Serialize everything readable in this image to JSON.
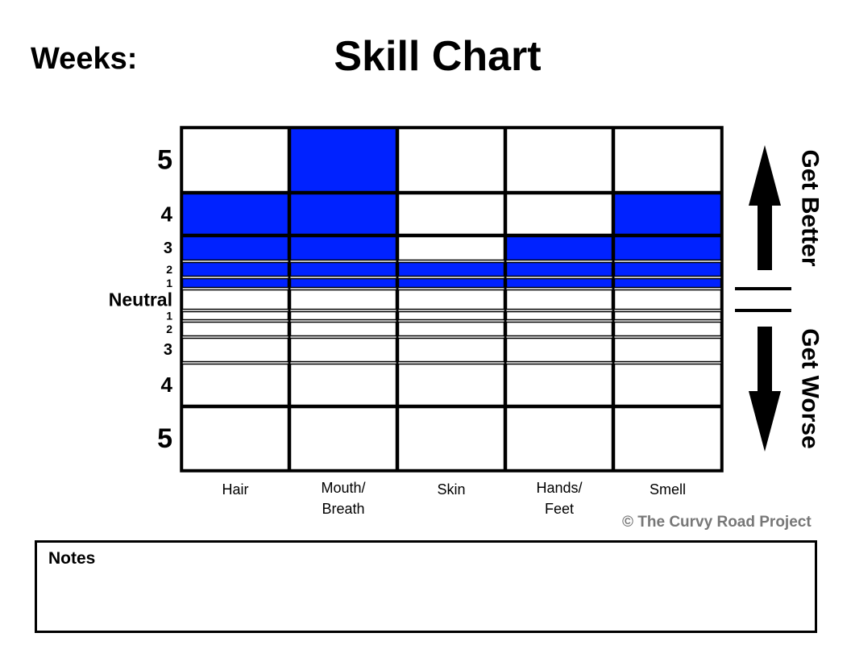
{
  "header": {
    "weeks_label": "Weeks:",
    "title": "Skill Chart"
  },
  "chart_data": {
    "type": "heatmap",
    "title": "Skill Chart",
    "categories": [
      "Hair",
      "Mouth/\nBreath",
      "Skin",
      "Hands/\nFeet",
      "Smell"
    ],
    "rows_top_to_bottom": [
      "5",
      "4",
      "3",
      "2",
      "1",
      "Neutral",
      "1",
      "2",
      "3",
      "4",
      "5"
    ],
    "better_levels": [
      "5",
      "4",
      "3",
      "2",
      "1"
    ],
    "neutral_label": "Neutral",
    "worse_levels": [
      "1",
      "2",
      "3",
      "4",
      "5"
    ],
    "values": [
      4,
      5,
      2,
      3,
      4
    ],
    "direction_labels": {
      "up": "Get Better",
      "down": "Get Worse"
    },
    "colors": {
      "fill": "#0022ff",
      "empty": "#ffffff",
      "grid": "#000000"
    },
    "grid": true
  },
  "footer": {
    "credit": "© The Curvy Road Project",
    "notes_label": "Notes"
  }
}
